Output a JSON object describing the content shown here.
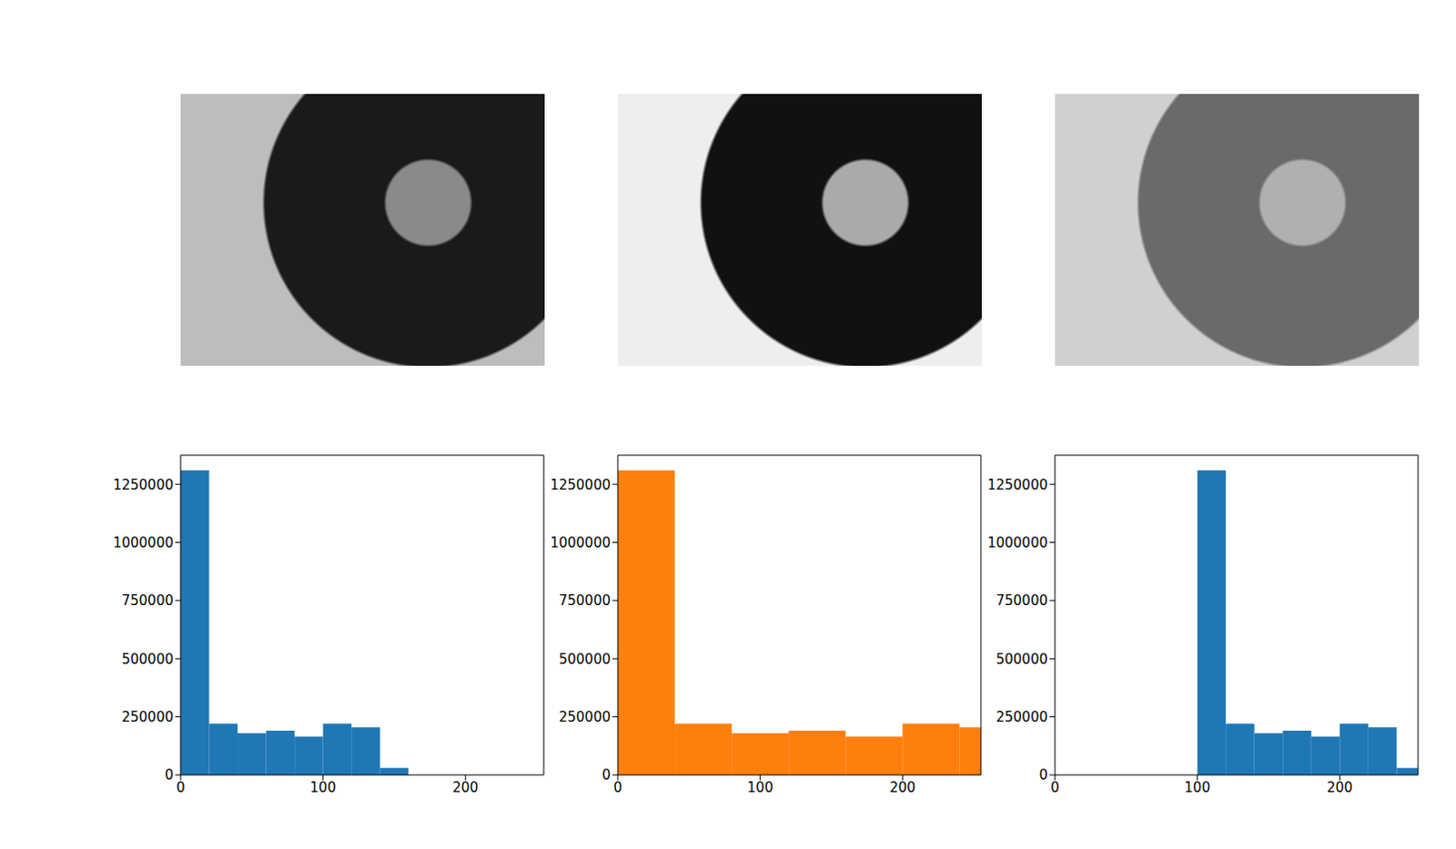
{
  "chart_data": [
    {
      "type": "histogram",
      "bins": [
        0,
        20,
        40,
        60,
        80,
        100,
        120,
        140,
        160
      ],
      "values": [
        1310000,
        220000,
        180000,
        190000,
        165000,
        220000,
        205000,
        30000
      ],
      "color": "#1f77b4",
      "xlim": [
        0,
        255
      ],
      "ylim": [
        0,
        1375000
      ],
      "xticks": [
        0,
        100,
        200
      ],
      "yticks": [
        0,
        250000,
        500000,
        750000,
        1000000,
        1250000
      ]
    },
    {
      "type": "histogram",
      "bins": [
        0,
        40,
        80,
        120,
        160,
        200,
        240,
        280
      ],
      "values": [
        1310000,
        220000,
        180000,
        190000,
        165000,
        220000,
        205000
      ],
      "color": "#ff7f0e",
      "xlim": [
        0,
        255
      ],
      "ylim": [
        0,
        1375000
      ],
      "xticks": [
        0,
        100,
        200
      ],
      "yticks": [
        0,
        250000,
        500000,
        750000,
        1000000,
        1250000
      ]
    },
    {
      "type": "histogram",
      "bins": [
        100,
        120,
        140,
        160,
        180,
        200,
        220,
        240,
        260
      ],
      "values": [
        1310000,
        220000,
        180000,
        190000,
        165000,
        220000,
        205000,
        30000
      ],
      "color": "#1f77b4",
      "xlim": [
        0,
        255
      ],
      "ylim": [
        0,
        1375000
      ],
      "xticks": [
        0,
        100,
        200
      ],
      "yticks": [
        0,
        250000,
        500000,
        750000,
        1000000,
        1250000
      ]
    }
  ]
}
